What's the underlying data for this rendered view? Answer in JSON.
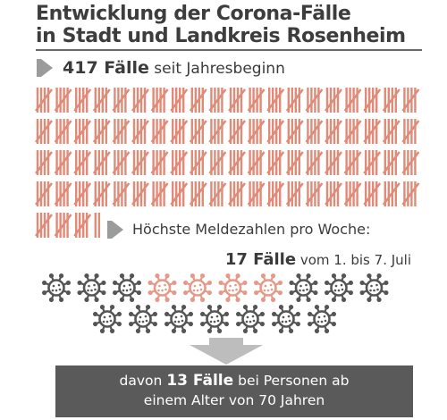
{
  "title": {
    "line1": "Entwicklung der Corona-Fälle",
    "line2": "in Stadt und Landkreis Rosenheim"
  },
  "total": {
    "value": "417 Fälle",
    "suffix": "seit Jahresbeginn",
    "count": 417
  },
  "peak": {
    "label": "Höchste Meldezahlen pro Woche:",
    "value": "17 Fälle",
    "suffix": "vom 1. bis 7. Juli",
    "count": 17,
    "highlighted": 4
  },
  "elderly": {
    "prefix": "davon",
    "value": "13 Fälle",
    "suffix_line1": "bei Personen ab",
    "line2": "einem Alter von 70 Jahren",
    "count": 13
  },
  "colors": {
    "tally": "#e08a78",
    "virus_dark": "#555555",
    "virus_highlight": "#e59a89",
    "box": "#5a5a5a",
    "arrow": "#9b9b9b",
    "text": "#3b3b3b"
  },
  "icons": {
    "pointer": "triangle-right-arrow-icon",
    "virus": "coronavirus-icon",
    "down_arrow": "down-arrow-icon"
  }
}
